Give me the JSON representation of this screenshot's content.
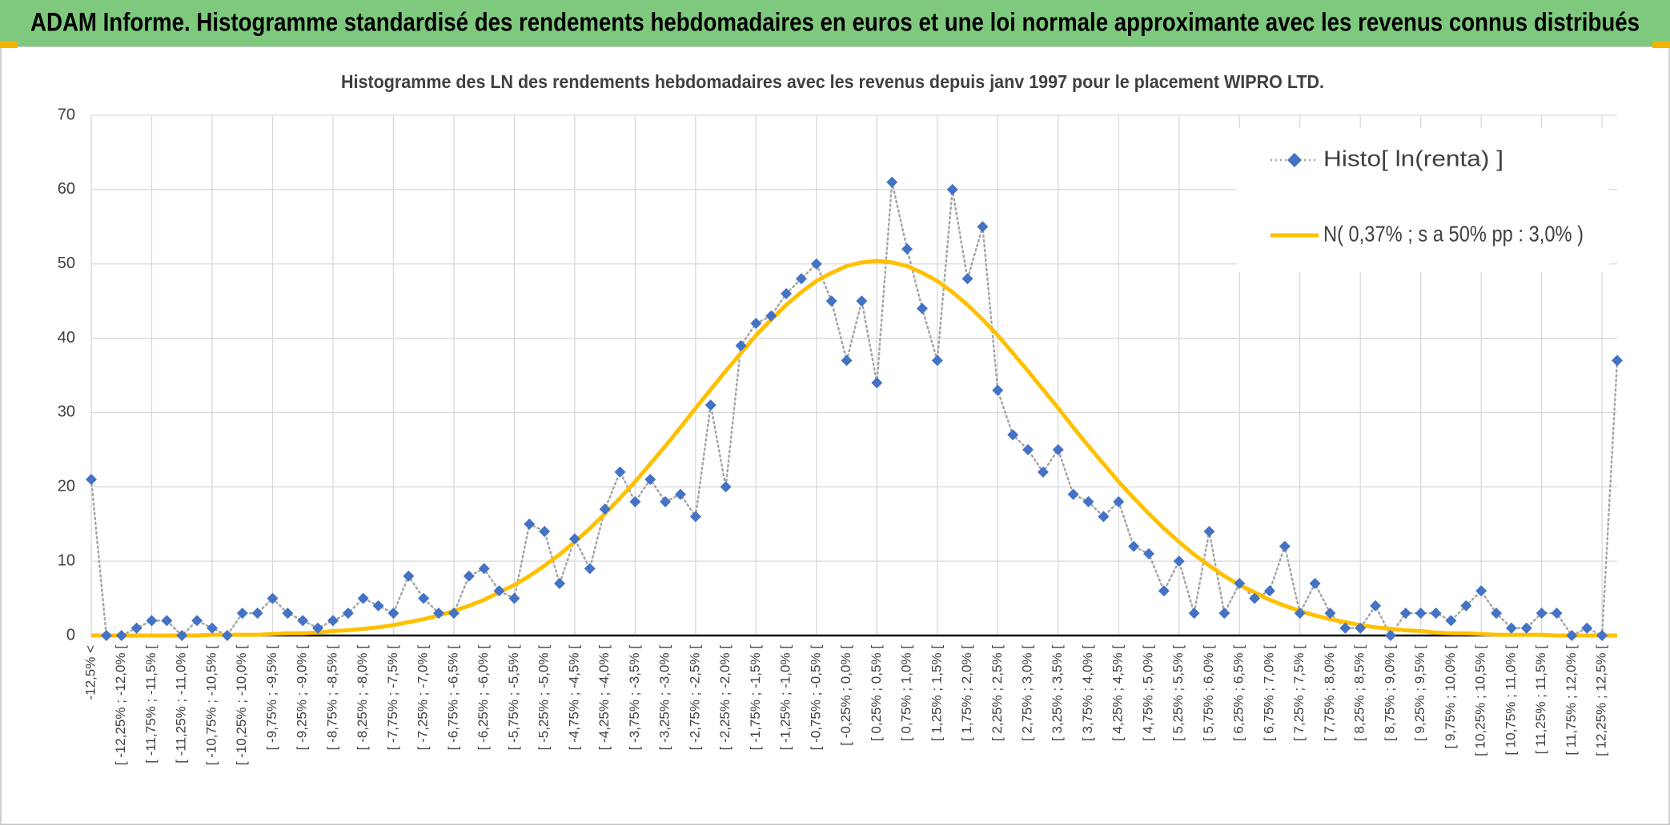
{
  "header": {
    "title": "ADAM Informe. Histogramme standardisé des rendements hebdomadaires en euros et une loi normale approximante avec les revenus connus distribués"
  },
  "chart_data": {
    "type": "line",
    "title": "Histogramme des LN des rendements hebdomadaires avec les revenus depuis janv 1997 pour le placement WIPRO LTD.",
    "categories": [
      "-12,5% <",
      null,
      "[ -12,25% ; -12,0% [",
      null,
      "[ -11,75% ; -11,5% [",
      null,
      "[ -11,25% ; -11,0% [",
      null,
      "[ -10,75% ; -10,5% [",
      null,
      "[ -10,25% ; -10,0% [",
      null,
      "[ -9,75% ; -9,5% [",
      null,
      "[ -9,25% ; -9,0% [",
      null,
      "[ -8,75% ; -8,5% [",
      null,
      "[ -8,25% ; -8,0% [",
      null,
      "[ -7,75% ; -7,5% [",
      null,
      "[ -7,25% ; -7,0% [",
      null,
      "[ -6,75% ; -6,5% [",
      null,
      "[ -6,25% ; -6,0% [",
      null,
      "[ -5,75% ; -5,5% [",
      null,
      "[ -5,25% ; -5,0% [",
      null,
      "[ -4,75% ; -4,5% [",
      null,
      "[ -4,25% ; -4,0% [",
      null,
      "[ -3,75% ; -3,5% [",
      null,
      "[ -3,25% ; -3,0% [",
      null,
      "[ -2,75% ; -2,5% [",
      null,
      "[ -2,25% ; -2,0% [",
      null,
      "[ -1,75% ; -1,5% [",
      null,
      "[ -1,25% ; -1,0% [",
      null,
      "[ -0,75% ; -0,5% [",
      null,
      "[ -0,25% ; 0,0% [",
      null,
      "[ 0,25% ; 0,5% [",
      null,
      "[ 0,75% ; 1,0% [",
      null,
      "[ 1,25% ; 1,5% [",
      null,
      "[ 1,75% ; 2,0% [",
      null,
      "[ 2,25% ; 2,5% [",
      null,
      "[ 2,75% ; 3,0% [",
      null,
      "[ 3,25% ; 3,5% [",
      null,
      "[ 3,75% ; 4,0% [",
      null,
      "[ 4,25% ; 4,5% [",
      null,
      "[ 4,75% ; 5,0% [",
      null,
      "[ 5,25% ; 5,5% [",
      null,
      "[ 5,75% ; 6,0% [",
      null,
      "[ 6,25% ; 6,5% [",
      null,
      "[ 6,75% ; 7,0% [",
      null,
      "[ 7,25% ; 7,5% [",
      null,
      "[ 7,75% ; 8,0% [",
      null,
      "[ 8,25% ; 8,5% [",
      null,
      "[ 8,75% ; 9,0% [",
      null,
      "[ 9,25% ; 9,5% [",
      null,
      "[ 9,75% ; 10,0% [",
      null,
      "[ 10,25% ; 10,5% [",
      null,
      "[ 10,75% ; 11,0% [",
      null,
      "[ 11,25% ; 11,5% [",
      null,
      "[ 11,75% ; 12,0% [",
      null,
      "[ 12,25% ; 12,5% [",
      null
    ],
    "series": [
      {
        "name": "Histo[ ln(renta) ]",
        "color": "#4472c4",
        "line_color": "#a6a6a6",
        "values": [
          21,
          0,
          0,
          1,
          2,
          2,
          0,
          2,
          1,
          0,
          3,
          3,
          5,
          3,
          2,
          1,
          2,
          3,
          5,
          4,
          3,
          8,
          5,
          3,
          3,
          8,
          9,
          6,
          5,
          15,
          14,
          7,
          13,
          9,
          17,
          22,
          18,
          21,
          18,
          19,
          16,
          31,
          20,
          39,
          42,
          43,
          46,
          48,
          50,
          45,
          37,
          45,
          34,
          61,
          52,
          44,
          37,
          60,
          48,
          55,
          33,
          27,
          25,
          22,
          25,
          19,
          18,
          16,
          18,
          12,
          11,
          6,
          10,
          3,
          14,
          3,
          7,
          5,
          6,
          12,
          3,
          7,
          3,
          1,
          1,
          4,
          0,
          3,
          3,
          3,
          2,
          4,
          6,
          3,
          1,
          1,
          3,
          3,
          0,
          1,
          0,
          37
        ]
      },
      {
        "name": "N( 0,37% ; s a 50% pp : 3,0% )",
        "color": "#ffc000",
        "values": [
          0,
          0,
          0,
          0,
          0,
          0,
          0,
          0,
          0.1,
          0.1,
          0.1,
          0.1,
          0.2,
          0.3,
          0.3,
          0.4,
          0.6,
          0.7,
          0.9,
          1.1,
          1.4,
          1.8,
          2.2,
          2.7,
          3.3,
          4.0,
          4.8,
          5.8,
          6.8,
          8.0,
          9.4,
          10.9,
          12.6,
          14.4,
          16.4,
          18.5,
          20.7,
          23.1,
          25.5,
          28.0,
          30.6,
          33.1,
          35.6,
          38.0,
          40.4,
          42.5,
          44.5,
          46.2,
          47.7,
          48.8,
          49.7,
          50.2,
          50.4,
          50.2,
          49.7,
          48.8,
          47.7,
          46.2,
          44.5,
          42.5,
          40.4,
          38.0,
          35.6,
          33.1,
          30.6,
          28.0,
          25.5,
          23.1,
          20.7,
          18.5,
          16.4,
          14.4,
          12.6,
          10.9,
          9.4,
          8.0,
          6.8,
          5.8,
          4.8,
          4.0,
          3.3,
          2.7,
          2.2,
          1.8,
          1.4,
          1.1,
          0.9,
          0.7,
          0.6,
          0.4,
          0.3,
          0.3,
          0.2,
          0.1,
          0.1,
          0.1,
          0.1,
          0,
          0,
          0,
          0,
          0
        ]
      }
    ],
    "ylim": [
      0,
      70
    ],
    "yticks": [
      0,
      10,
      20,
      30,
      40,
      50,
      60,
      70
    ],
    "grid": true,
    "legend": "upper right"
  }
}
